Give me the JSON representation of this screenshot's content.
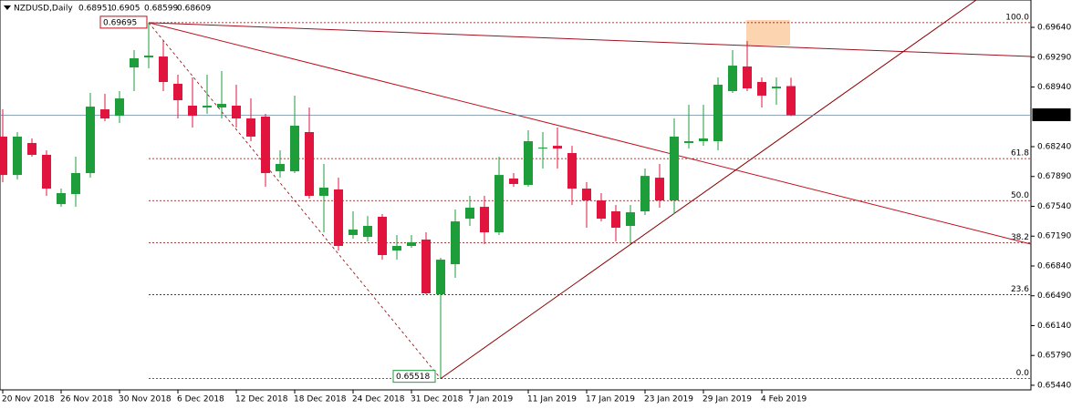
{
  "chart_data": {
    "type": "candlestick",
    "title": "NZDUSD,Daily",
    "categories": [
      "20 Nov 2018",
      null,
      null,
      null,
      "26 Nov 2018",
      null,
      null,
      null,
      "30 Nov 2018",
      null,
      null,
      null,
      "6 Dec 2018",
      null,
      null,
      null,
      "12 Dec 2018",
      null,
      null,
      null,
      "18 Dec 2018",
      null,
      null,
      null,
      "24 Dec 2018",
      null,
      null,
      null,
      "31 Dec 2018",
      null,
      null,
      null,
      "7 Jan 2019",
      null,
      null,
      null,
      "11 Jan 2019",
      null,
      null,
      null,
      "17 Jan 2019",
      null,
      null,
      null,
      "23 Jan 2019",
      null,
      null,
      null,
      "29 Jan 2019",
      null,
      null,
      null,
      "4 Feb 2019",
      null,
      null
    ],
    "open": [
      0.68358,
      0.67908,
      0.68283,
      0.68144,
      0.67566,
      0.67684,
      0.6793,
      0.68678,
      0.68603,
      0.6917,
      0.69288,
      0.69298,
      0.68978,
      0.68721,
      0.687,
      0.687,
      0.68721,
      0.68571,
      0.68593,
      0.67951,
      0.67951,
      0.68411,
      0.67663,
      0.67738,
      0.67203,
      0.67181,
      0.67417,
      0.67021,
      0.67075,
      0.6715,
      0.66508,
      0.66861,
      0.67395,
      0.67534,
      0.67235,
      0.67866,
      0.67791,
      0.68218,
      0.6825,
      0.68165,
      0.67748,
      0.67609,
      0.67481,
      0.6731,
      0.67481,
      0.67876,
      0.67609,
      0.68283,
      0.68304,
      0.68304,
      0.68892,
      0.69181,
      0.68999,
      0.68924,
      0.68951
    ],
    "high": [
      0.68678,
      0.68411,
      0.68336,
      0.68197,
      0.67748,
      0.68122,
      0.68871,
      0.6886,
      0.68892,
      0.69373,
      0.69695,
      0.6948,
      0.69085,
      0.69052,
      0.69085,
      0.69127,
      0.68967,
      0.68806,
      0.68625,
      0.68197,
      0.68839,
      0.687,
      0.68037,
      0.67876,
      0.67481,
      0.67426,
      0.67449,
      0.67203,
      0.67203,
      0.67235,
      0.66936,
      0.67502,
      0.67663,
      0.67663,
      0.68122,
      0.6793,
      0.68433,
      0.68411,
      0.68465,
      0.6825,
      0.67823,
      0.67695,
      0.67556,
      0.67556,
      0.67983,
      0.68037,
      0.68571,
      0.68732,
      0.68732,
      0.69052,
      0.69373,
      0.6948,
      0.69052,
      0.69052,
      0.6905
    ],
    "low": [
      0.67823,
      0.67855,
      0.68122,
      0.67663,
      0.67534,
      0.67534,
      0.67876,
      0.68539,
      0.68518,
      0.68892,
      0.69159,
      0.68892,
      0.68571,
      0.68465,
      0.68625,
      0.68571,
      0.68465,
      0.68304,
      0.6777,
      0.67876,
      0.6793,
      0.67631,
      0.67235,
      0.67021,
      0.6716,
      0.67128,
      0.66914,
      0.66914,
      0.67053,
      0.66508,
      0.65518,
      0.66701,
      0.6731,
      0.67096,
      0.67203,
      0.6777,
      0.6777,
      0.67983,
      0.67983,
      0.67556,
      0.67289,
      0.67363,
      0.67128,
      0.67096,
      0.67438,
      0.67524,
      0.67449,
      0.68218,
      0.6825,
      0.68197,
      0.68871,
      0.68892,
      0.687,
      0.68732,
      0.68599
    ],
    "close": [
      0.67908,
      0.68358,
      0.68144,
      0.67748,
      0.67695,
      0.6793,
      0.6871,
      0.68571,
      0.68806,
      0.69277,
      0.69309,
      0.68999,
      0.68785,
      0.68603,
      0.68721,
      0.68742,
      0.68571,
      0.68358,
      0.6793,
      0.68037,
      0.68486,
      0.67663,
      0.67759,
      0.67075,
      0.67267,
      0.6731,
      0.66968,
      0.67075,
      0.67118,
      0.66519,
      0.66914,
      0.67363,
      0.67524,
      0.67235,
      0.67908,
      0.67802,
      0.68304,
      0.68229,
      0.68218,
      0.67748,
      0.67609,
      0.67395,
      0.67289,
      0.6747,
      0.67897,
      0.67609,
      0.68358,
      0.68304,
      0.68336,
      0.68967,
      0.69191,
      0.68924,
      0.68839,
      0.68945,
      0.68609
    ],
    "up_color": "#1e9e3a",
    "down_color": "#e0143c",
    "ylim": [
      0.65386,
      0.69961
    ],
    "yticks": [
      {
        "value": 0.6964,
        "label": "0.69640"
      },
      {
        "value": 0.6929,
        "label": "0.69290"
      },
      {
        "value": 0.6894,
        "label": "0.68940"
      },
      {
        "value": 0.6824,
        "label": "0.68240"
      },
      {
        "value": 0.6789,
        "label": "0.67890"
      },
      {
        "value": 0.6754,
        "label": "0.67540"
      },
      {
        "value": 0.6719,
        "label": "0.67190"
      },
      {
        "value": 0.6684,
        "label": "0.66840"
      },
      {
        "value": 0.6649,
        "label": "0.66490"
      },
      {
        "value": 0.6614,
        "label": "0.66140"
      },
      {
        "value": 0.6579,
        "label": "0.65790"
      },
      {
        "value": 0.6544,
        "label": "0.65440"
      }
    ],
    "fib": {
      "high": 0.69695,
      "low": 0.65518,
      "levels": [
        {
          "value": 100,
          "label": "100.0"
        },
        61.8,
        {
          "value": 50,
          "label": "50.0"
        },
        38.2,
        23.6,
        {
          "value": 0,
          "label": "0.0"
        }
      ]
    }
  }
}
